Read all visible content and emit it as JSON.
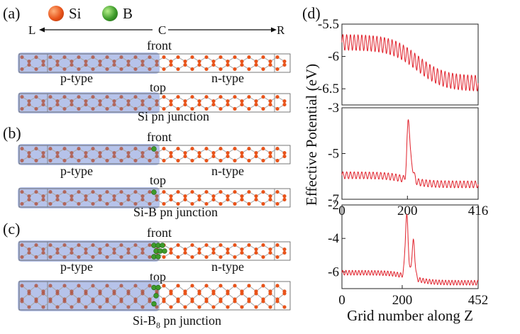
{
  "legend": {
    "panel": "(a)",
    "items": [
      {
        "label": "Si",
        "color": "#e8531a"
      },
      {
        "label": "B",
        "color": "#3d9b2a"
      }
    ],
    "axis_left": "L",
    "axis_center": "C",
    "axis_right": "R"
  },
  "panels": [
    {
      "label": "(a)",
      "view_front": "front",
      "view_top": "top",
      "p_label": "p-type",
      "n_label": "n-type",
      "caption": "Si pn junction",
      "boron_atoms_front": 0,
      "boron_atoms_top": 0
    },
    {
      "label": "(b)",
      "view_front": "front",
      "view_top": "top",
      "p_label": "p-type",
      "n_label": "n-type",
      "caption": "Si-B pn junction",
      "boron_atoms_front": 1,
      "boron_atoms_top": 1
    },
    {
      "label": "(c)",
      "view_front": "front",
      "view_top": "top",
      "p_label": "p-type",
      "n_label": "n-type",
      "caption_main": "Si-B",
      "caption_sub": "8",
      "caption_rest": " pn junction",
      "boron_atoms_front": 8,
      "boron_atoms_top": 4
    }
  ],
  "colors": {
    "si_atom": "#e8531a",
    "b_atom": "#3d9b2a",
    "p_region": "#a9b8e6",
    "bond": "#a8a8a8",
    "curve": "#e0202a"
  },
  "chart_data": {
    "panel_label": "(d)",
    "type": "line",
    "ylabel": "Effective Potential (eV)",
    "xlabel": "Grid number along Z",
    "subplots": [
      {
        "name": "Si pn junction",
        "xlim": [
          0,
          416
        ],
        "ylim": [
          -6.75,
          -5.5
        ],
        "yticks": [
          "-5.5",
          "-6",
          "-6.5"
        ],
        "ytick_values": [
          -5.5,
          -6,
          -6.5
        ],
        "xticks": [],
        "model": {
          "left_level": -5.78,
          "right_level": -6.42,
          "center": 230,
          "width": 40,
          "amplitude": 0.12,
          "periods": 36,
          "peaks": []
        }
      },
      {
        "name": "Si-B pn junction",
        "xlim": [
          0,
          416
        ],
        "ylim": [
          -7,
          -3
        ],
        "yticks": [
          "-3",
          "-5",
          "-7"
        ],
        "ytick_values": [
          -3,
          -5,
          -7
        ],
        "xticks": [
          "0",
          "200",
          "416"
        ],
        "xtick_values": [
          0,
          200,
          416
        ],
        "model": {
          "left_level": -5.95,
          "right_level": -6.35,
          "center": 200,
          "width": 30,
          "amplitude": 0.15,
          "periods": 36,
          "peaks": [
            {
              "x": 203,
              "h": 2.6,
              "w": 6
            },
            {
              "x": 214,
              "h": 0.6,
              "w": 8
            }
          ]
        }
      },
      {
        "name": "Si-B8 pn junction",
        "xlim": [
          0,
          452
        ],
        "ylim": [
          -7,
          -2
        ],
        "yticks": [
          "-2",
          "-4",
          "-6"
        ],
        "ytick_values": [
          -2,
          -4,
          -6
        ],
        "xticks": [
          "0",
          "200",
          "452"
        ],
        "xtick_values": [
          0,
          200,
          452
        ],
        "model": {
          "left_level": -6.05,
          "right_level": -6.65,
          "center": 230,
          "width": 30,
          "amplitude": 0.14,
          "periods": 39,
          "peaks": [
            {
              "x": 215,
              "h": 3.6,
              "w": 7
            },
            {
              "x": 237,
              "h": 2.2,
              "w": 7
            }
          ]
        }
      }
    ]
  }
}
